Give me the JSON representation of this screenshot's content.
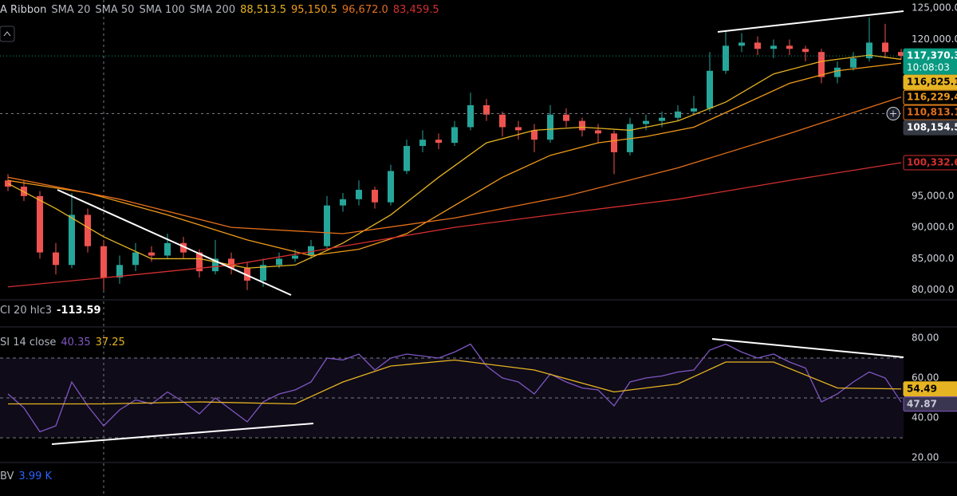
{
  "chart_data": [
    {
      "type": "candlestick",
      "indicator": "A Ribbon",
      "open": [
        97500,
        96500,
        95000,
        86000,
        84000,
        92000,
        87000,
        82000,
        84000,
        86000,
        85500,
        87500,
        86000,
        83000,
        85000,
        83500,
        81500,
        84000,
        85000,
        85500,
        87000,
        93500,
        94500,
        96000,
        94000,
        99000,
        103000,
        104000,
        103500,
        106000,
        109500,
        108000,
        106000,
        105500,
        104000,
        108000,
        107000,
        105500,
        105000,
        102000,
        106500,
        107000,
        107500,
        108500,
        109000,
        115000,
        119000,
        119500,
        118500,
        119000,
        118500,
        118000,
        114000,
        115500,
        117000,
        119500,
        118000
      ],
      "high": [
        98500,
        97500,
        95800,
        87500,
        95500,
        93000,
        88000,
        85500,
        87500,
        87000,
        89000,
        88500,
        86500,
        88000,
        86000,
        84500,
        85000,
        86000,
        86500,
        88000,
        95000,
        95500,
        97500,
        96500,
        100000,
        104000,
        105500,
        105000,
        107000,
        111500,
        110500,
        108500,
        107000,
        106500,
        109500,
        109000,
        107500,
        106500,
        105500,
        107500,
        108000,
        108500,
        109500,
        111000,
        118000,
        121500,
        121000,
        120500,
        120000,
        120000,
        119000,
        118500,
        116500,
        118000,
        123500,
        122500,
        118500
      ],
      "low": [
        95800,
        94200,
        85000,
        82500,
        83500,
        86000,
        80000,
        81000,
        83000,
        84500,
        85000,
        85000,
        82000,
        82500,
        82500,
        80000,
        80500,
        83500,
        84500,
        85000,
        86500,
        92500,
        93500,
        93000,
        93500,
        98500,
        102000,
        102500,
        103000,
        105500,
        107000,
        104500,
        104000,
        102000,
        103500,
        106000,
        104500,
        103500,
        98500,
        101500,
        105500,
        106000,
        107000,
        108000,
        108500,
        114500,
        118000,
        117500,
        117000,
        117500,
        116500,
        113000,
        113000,
        115000,
        116500,
        117000,
        116800
      ],
      "close": [
        96500,
        95000,
        86000,
        84000,
        92000,
        87000,
        82000,
        84000,
        86000,
        85500,
        87500,
        86000,
        83000,
        85000,
        83500,
        81500,
        84000,
        85000,
        85500,
        87000,
        93500,
        94500,
        96000,
        94000,
        99000,
        103000,
        104000,
        103500,
        106000,
        109500,
        108000,
        106000,
        105500,
        104000,
        108000,
        107000,
        105500,
        105000,
        102000,
        106500,
        107000,
        107500,
        108500,
        109000,
        115000,
        119000,
        119500,
        118500,
        119000,
        118500,
        118000,
        114000,
        115500,
        117000,
        119500,
        118000,
        117370.3
      ],
      "up_color": "#26a69a",
      "down_color": "#ef5350",
      "ylim": [
        79200,
        126300
      ],
      "yticks": [
        {
          "value": 125000,
          "label": "125,000.0"
        },
        {
          "value": 120000,
          "label": "120,000.0"
        },
        {
          "value": 95000,
          "label": "95,000.0"
        },
        {
          "value": 90000,
          "label": "90,000.0"
        },
        {
          "value": 85000,
          "label": "85,000.0"
        },
        {
          "value": 80000,
          "label": "80,000.0"
        }
      ],
      "series": [
        {
          "name": "SMA 20",
          "color": "#e6b422",
          "label_style": "filled",
          "readout": {
            "value": 88513.5,
            "label": "88,513.5"
          },
          "price_label": {
            "value": 116825.1,
            "label": "116,825.1"
          },
          "x": [
            0,
            3,
            6,
            9,
            12,
            15,
            18,
            21,
            24,
            27,
            30,
            33,
            36,
            39,
            42,
            45,
            48,
            51,
            54,
            56
          ],
          "values": [
            97000,
            93000,
            88500,
            85000,
            85000,
            83500,
            84000,
            87500,
            92000,
            98000,
            103500,
            105500,
            106000,
            105500,
            107000,
            110000,
            114500,
            116500,
            117500,
            116825
          ]
        },
        {
          "name": "SMA 50",
          "color": "#f09a1a",
          "label_style": "outline",
          "readout": {
            "value": 95150.5,
            "label": "95,150.5"
          },
          "price_label": {
            "value": 116229.4,
            "label": "116,229.4"
          },
          "x": [
            0,
            5,
            10,
            15,
            19,
            22,
            25,
            28,
            31,
            34,
            37,
            40,
            43,
            46,
            49,
            52,
            56
          ],
          "values": [
            97500,
            95500,
            92000,
            88000,
            85500,
            86500,
            89000,
            93500,
            98000,
            101500,
            103500,
            104500,
            106000,
            109500,
            113000,
            115000,
            116229
          ]
        },
        {
          "name": "SMA 100",
          "color": "#e4701b",
          "label_style": "outline",
          "readout": {
            "value": 96672.0,
            "label": "96,672.0"
          },
          "price_label": {
            "value": 110813.1,
            "label": "110,813.1"
          },
          "x": [
            0,
            7,
            14,
            21,
            28,
            35,
            42,
            49,
            56
          ],
          "values": [
            98000,
            94500,
            90000,
            89000,
            91500,
            95000,
            99500,
            105000,
            110813
          ]
        },
        {
          "name": "SMA 200",
          "color": "#d32f2f",
          "label_style": "outline",
          "readout": {
            "value": 83459.5,
            "label": "83,459.5"
          },
          "price_label": {
            "value": 100332.6,
            "label": "100,332.6"
          },
          "x": [
            0,
            7,
            14,
            21,
            28,
            35,
            42,
            49,
            56
          ],
          "values": [
            80500,
            82200,
            84000,
            87000,
            90000,
            92300,
            94500,
            97500,
            100332
          ]
        }
      ],
      "last_price": {
        "value": 117370.3,
        "label": "117,370.3",
        "countdown": "10:08:03",
        "color": "#089981"
      },
      "crosshair": {
        "value": 108154.5,
        "label": "108,154.5"
      }
    },
    {
      "type": "readout",
      "title": "CI 20 hlc3",
      "value": -113.59,
      "color": "#ffffff"
    },
    {
      "type": "line",
      "title": "SI 14 close",
      "ylim": [
        18.4,
        84.8
      ],
      "yticks": [
        {
          "value": 80,
          "label": "80.00"
        },
        {
          "value": 60,
          "label": "60.00"
        },
        {
          "value": 40,
          "label": "40.00"
        },
        {
          "value": 20,
          "label": "20.00"
        }
      ],
      "levels": [
        70,
        50,
        30
      ],
      "band_color": "rgba(126,87,194,0.12)",
      "series": [
        {
          "color": "#7e57c2",
          "readout": 40.35,
          "price_label": 47.87,
          "values": [
            52,
            45,
            33,
            36,
            58,
            46,
            36,
            44,
            49,
            47,
            53,
            48,
            42,
            50,
            44,
            38,
            48,
            52,
            54,
            58,
            70,
            69,
            72,
            64,
            70,
            72,
            71,
            70,
            73,
            77,
            66,
            60,
            58,
            52,
            62,
            58,
            55,
            54,
            46,
            58,
            60,
            61,
            63,
            64,
            74,
            77,
            73,
            70,
            72,
            68,
            65,
            48,
            52,
            58,
            63,
            60,
            47.87
          ]
        },
        {
          "color": "#e6b422",
          "readout": 37.25,
          "price_label": 54.49,
          "x": [
            0,
            6,
            12,
            18,
            21,
            24,
            28,
            33,
            38,
            42,
            45,
            48,
            52,
            56
          ],
          "values": [
            47,
            47,
            48,
            47,
            58,
            66,
            69,
            64,
            53,
            57,
            68,
            68,
            55,
            54.49
          ]
        }
      ]
    },
    {
      "type": "readout",
      "title": "BV",
      "value": {
        "value": 3990,
        "label": "3.99 K"
      },
      "color": "#2962ff"
    }
  ]
}
